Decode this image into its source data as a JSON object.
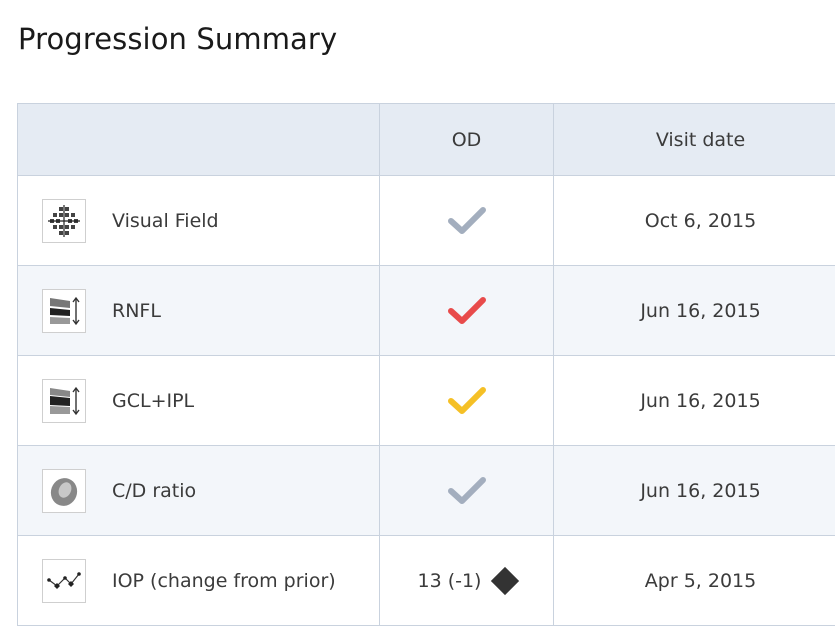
{
  "page": {
    "title": "Progression Summary"
  },
  "table": {
    "headers": [
      "",
      "OD",
      "Visit date"
    ],
    "rows": [
      {
        "icon": "visual-field-icon",
        "name": "Visual Field",
        "status": "check",
        "status_color": "#a3aebe",
        "date": "Oct 6, 2015"
      },
      {
        "icon": "rnfl-icon",
        "name": "RNFL",
        "status": "check",
        "status_color": "#e84b4b",
        "date": "Jun 16, 2015"
      },
      {
        "icon": "gcl-ipl-icon",
        "name": "GCL+IPL",
        "status": "check",
        "status_color": "#f5c026",
        "date": "Jun 16, 2015"
      },
      {
        "icon": "cd-ratio-icon",
        "name": "C/D ratio",
        "status": "check",
        "status_color": "#a3aebe",
        "date": "Jun 16, 2015"
      },
      {
        "icon": "iop-trend-icon",
        "name": "IOP (change from prior)",
        "value": "13",
        "change": "(-1)",
        "marker": "diamond-icon",
        "date": "Apr 5, 2015"
      }
    ]
  }
}
